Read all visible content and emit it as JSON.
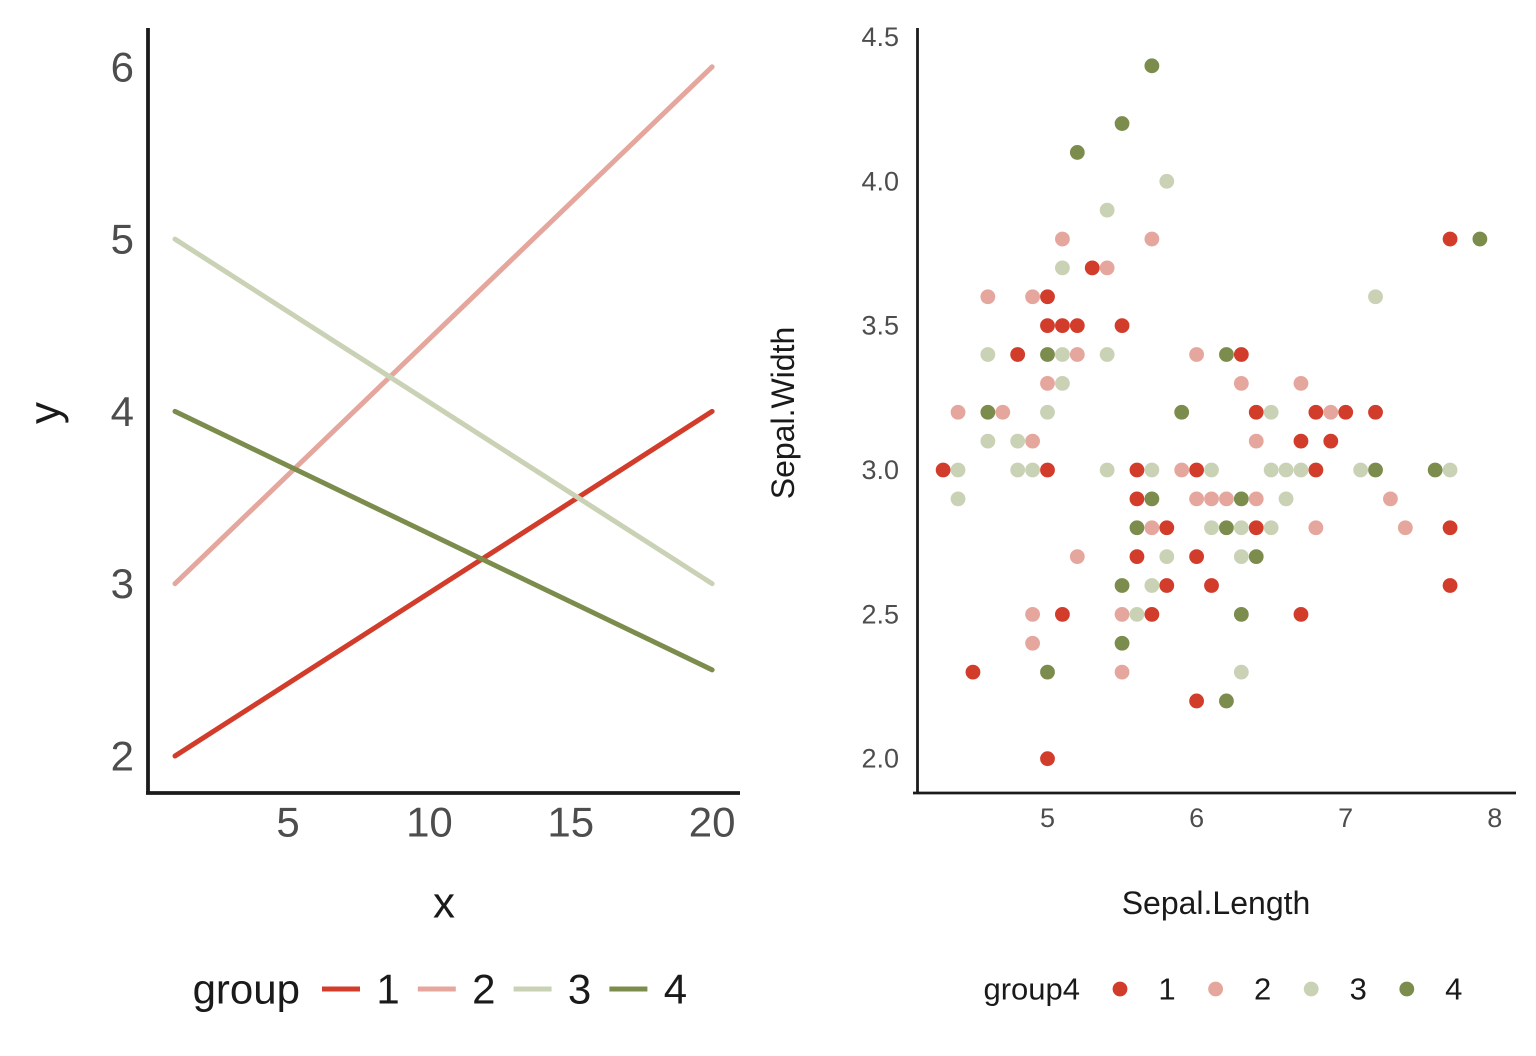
{
  "figure": {
    "background": "#ffffff",
    "axis_line_color": "#1b1b1b",
    "tick_label_color": "#4d4d4d",
    "title_color": "#1a1a1a"
  },
  "palette": {
    "group1": "#D23C2B",
    "group2": "#E5A79D",
    "group3": "#CAD2B6",
    "group4": "#7C8C4D"
  },
  "chart_data": [
    {
      "type": "line",
      "title": "",
      "xlabel": "x",
      "ylabel": "y",
      "xlim": [
        1,
        20
      ],
      "ylim": [
        2,
        6
      ],
      "x_ticks": [
        "5",
        "10",
        "15",
        "20"
      ],
      "x_tick_values": [
        5,
        10,
        15,
        20
      ],
      "y_ticks": [
        "2",
        "3",
        "4",
        "5",
        "6"
      ],
      "y_tick_values": [
        2,
        3,
        4,
        5,
        6
      ],
      "grid": "off",
      "legend_position": "bottom",
      "legend_title": "group",
      "series": [
        {
          "name": "1",
          "color": "#D23C2B",
          "points": [
            [
              1,
              2
            ],
            [
              20,
              4
            ]
          ]
        },
        {
          "name": "2",
          "color": "#E5A79D",
          "points": [
            [
              1,
              3
            ],
            [
              20,
              6
            ]
          ]
        },
        {
          "name": "3",
          "color": "#CAD2B6",
          "points": [
            [
              1,
              5
            ],
            [
              20,
              3
            ]
          ]
        },
        {
          "name": "4",
          "color": "#7C8C4D",
          "points": [
            [
              1,
              4
            ],
            [
              20,
              2.5
            ]
          ]
        }
      ]
    },
    {
      "type": "scatter",
      "title": "",
      "xlabel": "Sepal.Length",
      "ylabel": "Sepal.Width",
      "xlim": [
        4.3,
        8.0
      ],
      "ylim": [
        2.0,
        4.5
      ],
      "x_ticks": [
        "5",
        "6",
        "7",
        "8"
      ],
      "x_tick_values": [
        5,
        6,
        7,
        8
      ],
      "y_ticks": [
        "2.0",
        "2.5",
        "3.0",
        "3.5",
        "4.0",
        "4.5"
      ],
      "y_tick_values": [
        2.0,
        2.5,
        3.0,
        3.5,
        4.0,
        4.5
      ],
      "grid": "off",
      "legend_position": "bottom",
      "legend_title": "group4",
      "groups": [
        {
          "name": "1",
          "color": "#D23C2B"
        },
        {
          "name": "2",
          "color": "#E5A79D"
        },
        {
          "name": "3",
          "color": "#CAD2B6"
        },
        {
          "name": "4",
          "color": "#7C8C4D"
        }
      ],
      "points": [
        [
          5.7,
          4.4,
          4
        ],
        [
          5.5,
          4.2,
          4
        ],
        [
          5.2,
          4.1,
          4
        ],
        [
          5.8,
          4.0,
          3
        ],
        [
          5.4,
          3.9,
          3
        ],
        [
          5.1,
          3.8,
          2
        ],
        [
          5.7,
          3.8,
          2
        ],
        [
          7.7,
          3.8,
          1
        ],
        [
          7.9,
          3.8,
          4
        ],
        [
          5.1,
          3.7,
          3
        ],
        [
          5.3,
          3.7,
          1
        ],
        [
          5.4,
          3.7,
          2
        ],
        [
          4.6,
          3.6,
          2
        ],
        [
          4.9,
          3.6,
          2
        ],
        [
          5.0,
          3.6,
          1
        ],
        [
          7.2,
          3.6,
          3
        ],
        [
          5.0,
          3.5,
          1
        ],
        [
          5.1,
          3.5,
          1
        ],
        [
          5.2,
          3.5,
          1
        ],
        [
          5.5,
          3.5,
          1
        ],
        [
          4.6,
          3.4,
          3
        ],
        [
          4.8,
          3.4,
          1
        ],
        [
          5.0,
          3.4,
          4
        ],
        [
          5.1,
          3.4,
          3
        ],
        [
          5.2,
          3.4,
          2
        ],
        [
          5.4,
          3.4,
          3
        ],
        [
          6.0,
          3.4,
          2
        ],
        [
          6.2,
          3.4,
          4
        ],
        [
          6.3,
          3.4,
          1
        ],
        [
          5.0,
          3.3,
          2
        ],
        [
          5.1,
          3.3,
          3
        ],
        [
          6.3,
          3.3,
          2
        ],
        [
          6.7,
          3.3,
          2
        ],
        [
          4.4,
          3.2,
          2
        ],
        [
          4.6,
          3.2,
          4
        ],
        [
          4.7,
          3.2,
          2
        ],
        [
          5.0,
          3.2,
          3
        ],
        [
          5.9,
          3.2,
          4
        ],
        [
          6.4,
          3.2,
          1
        ],
        [
          6.5,
          3.2,
          3
        ],
        [
          6.8,
          3.2,
          1
        ],
        [
          6.9,
          3.2,
          2
        ],
        [
          7.0,
          3.2,
          1
        ],
        [
          7.2,
          3.2,
          1
        ],
        [
          4.6,
          3.1,
          3
        ],
        [
          4.8,
          3.1,
          3
        ],
        [
          4.9,
          3.1,
          2
        ],
        [
          6.4,
          3.1,
          2
        ],
        [
          6.7,
          3.1,
          1
        ],
        [
          6.9,
          3.1,
          1
        ],
        [
          4.3,
          3.0,
          1
        ],
        [
          4.4,
          3.0,
          3
        ],
        [
          4.8,
          3.0,
          3
        ],
        [
          4.9,
          3.0,
          3
        ],
        [
          5.0,
          3.0,
          1
        ],
        [
          5.4,
          3.0,
          3
        ],
        [
          5.6,
          3.0,
          1
        ],
        [
          5.7,
          3.0,
          3
        ],
        [
          5.9,
          3.0,
          2
        ],
        [
          6.0,
          3.0,
          1
        ],
        [
          6.1,
          3.0,
          3
        ],
        [
          6.5,
          3.0,
          3
        ],
        [
          6.6,
          3.0,
          3
        ],
        [
          6.7,
          3.0,
          3
        ],
        [
          6.8,
          3.0,
          1
        ],
        [
          7.1,
          3.0,
          3
        ],
        [
          7.2,
          3.0,
          4
        ],
        [
          7.6,
          3.0,
          4
        ],
        [
          7.7,
          3.0,
          3
        ],
        [
          4.4,
          2.9,
          3
        ],
        [
          5.6,
          2.9,
          1
        ],
        [
          5.7,
          2.9,
          4
        ],
        [
          6.0,
          2.9,
          2
        ],
        [
          6.1,
          2.9,
          2
        ],
        [
          6.2,
          2.9,
          2
        ],
        [
          6.3,
          2.9,
          4
        ],
        [
          6.4,
          2.9,
          2
        ],
        [
          6.6,
          2.9,
          3
        ],
        [
          7.3,
          2.9,
          2
        ],
        [
          5.6,
          2.8,
          4
        ],
        [
          5.7,
          2.8,
          2
        ],
        [
          5.8,
          2.8,
          1
        ],
        [
          6.1,
          2.8,
          3
        ],
        [
          6.2,
          2.8,
          4
        ],
        [
          6.3,
          2.8,
          3
        ],
        [
          6.4,
          2.8,
          1
        ],
        [
          6.5,
          2.8,
          3
        ],
        [
          6.8,
          2.8,
          2
        ],
        [
          7.4,
          2.8,
          2
        ],
        [
          7.7,
          2.8,
          1
        ],
        [
          5.2,
          2.7,
          2
        ],
        [
          5.6,
          2.7,
          1
        ],
        [
          5.8,
          2.7,
          3
        ],
        [
          6.0,
          2.7,
          1
        ],
        [
          6.3,
          2.7,
          3
        ],
        [
          6.4,
          2.7,
          4
        ],
        [
          5.5,
          2.6,
          4
        ],
        [
          5.7,
          2.6,
          3
        ],
        [
          5.8,
          2.6,
          1
        ],
        [
          6.1,
          2.6,
          1
        ],
        [
          7.7,
          2.6,
          1
        ],
        [
          4.9,
          2.5,
          2
        ],
        [
          5.1,
          2.5,
          1
        ],
        [
          5.5,
          2.5,
          2
        ],
        [
          5.6,
          2.5,
          3
        ],
        [
          5.7,
          2.5,
          1
        ],
        [
          6.3,
          2.5,
          4
        ],
        [
          6.7,
          2.5,
          1
        ],
        [
          4.9,
          2.4,
          2
        ],
        [
          5.5,
          2.4,
          4
        ],
        [
          4.5,
          2.3,
          1
        ],
        [
          5.0,
          2.3,
          4
        ],
        [
          5.5,
          2.3,
          2
        ],
        [
          6.3,
          2.3,
          3
        ],
        [
          6.0,
          2.2,
          1
        ],
        [
          6.2,
          2.2,
          4
        ],
        [
          5.0,
          2.0,
          1
        ]
      ]
    }
  ]
}
